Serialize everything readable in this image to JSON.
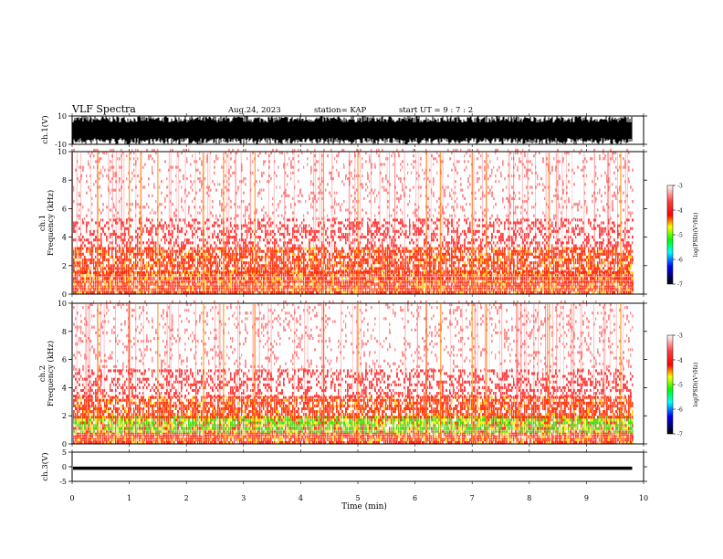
{
  "header": {
    "title": "VLF Spectra",
    "date": "Aug.24, 2023",
    "station": "station= KAP",
    "start": "start  UT  =   9  : 7  : 2"
  },
  "colorbar": {
    "label": "log(PSD)(V²/Hz)",
    "ticks": [
      -3,
      -4,
      -5,
      -6,
      -7
    ],
    "colors": [
      "#ffffff",
      "#ff0000",
      "#ffff00",
      "#00ff00",
      "#00ffff",
      "#0000ff",
      "#000000"
    ]
  },
  "chart_data": [
    {
      "type": "line",
      "panel": "ch1_waveform",
      "ylabel": "ch.1(V)",
      "ylim": [
        -10,
        10
      ],
      "ytick_labels": [
        "10",
        "-10"
      ],
      "xlim": [
        0,
        10
      ],
      "description_values": {
        "envelope_max": 10,
        "envelope_min": -10,
        "data_end_min": 9.8
      }
    },
    {
      "type": "heatmap",
      "panel": "ch1_spectrogram",
      "ylabel": "ch.1\nFrequency (kHz)",
      "ylabel_line1": "ch.1",
      "ylabel_line2": "Frequency (kHz)",
      "ylim": [
        0,
        10
      ],
      "ytick_labels": [
        "0",
        "2",
        "4",
        "6",
        "8",
        "10"
      ],
      "xlim": [
        0,
        10
      ],
      "data_end_min": 9.8,
      "bands_khz": [
        {
          "from": 0,
          "to": 1.5,
          "level": "high"
        },
        {
          "from": 1.5,
          "to": 3.3,
          "level": "mid"
        },
        {
          "from": 3.3,
          "to": 5.2,
          "level": "low"
        },
        {
          "from": 5.2,
          "to": 10,
          "level": "faint"
        }
      ],
      "sferic_times_min": [
        0.45,
        1.0,
        1.2,
        1.5,
        2.3,
        2.65,
        3.2,
        4.4,
        5.0,
        6.2,
        6.45,
        7.0,
        7.25,
        8.35,
        9.6
      ]
    },
    {
      "type": "heatmap",
      "panel": "ch2_spectrogram",
      "ylabel_line1": "ch.2",
      "ylabel_line2": "Frequency (kHz)",
      "ylim": [
        0,
        10
      ],
      "ytick_labels": [
        "0",
        "2",
        "4",
        "6",
        "8",
        "10"
      ],
      "xlim": [
        0,
        10
      ],
      "data_end_min": 9.8,
      "bands_khz": [
        {
          "from": 0,
          "to": 0.8,
          "level": "high"
        },
        {
          "from": 0.8,
          "to": 1.8,
          "level": "green"
        },
        {
          "from": 1.8,
          "to": 3.3,
          "level": "mid"
        },
        {
          "from": 3.3,
          "to": 5.2,
          "level": "low"
        },
        {
          "from": 5.2,
          "to": 10,
          "level": "faint"
        }
      ],
      "sferic_times_min": [
        0.45,
        1.0,
        1.5,
        2.3,
        2.65,
        3.2,
        4.4,
        5.0,
        6.2,
        6.45,
        7.0,
        7.25,
        8.35,
        9.6
      ]
    },
    {
      "type": "line",
      "panel": "ch3_waveform",
      "ylabel": "ch.3(V)",
      "ylim": [
        -5,
        5
      ],
      "ytick_labels": [
        "5",
        "0",
        "-5"
      ],
      "xlim": [
        0,
        10
      ],
      "description_values": {
        "level_v": -0.5,
        "data_end_min": 9.8
      }
    }
  ],
  "xaxis": {
    "label": "Time (min)",
    "ticks": [
      "0",
      "1",
      "2",
      "3",
      "4",
      "5",
      "6",
      "7",
      "8",
      "9",
      "10"
    ]
  }
}
